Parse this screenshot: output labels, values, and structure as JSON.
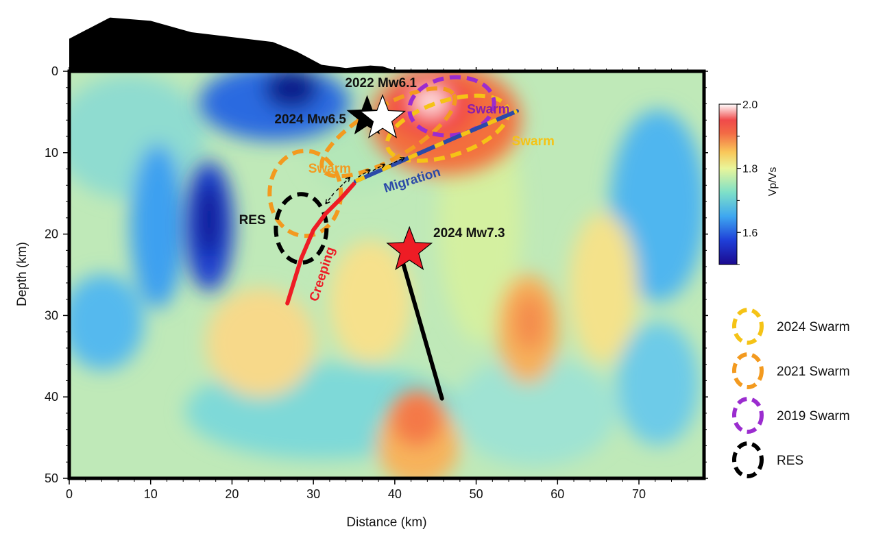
{
  "chart_data": {
    "type": "heatmap",
    "xlabel": "Distance (km)",
    "ylabel": "Depth (km)",
    "xlim": [
      0,
      78
    ],
    "ylim": [
      50,
      0
    ],
    "x_ticks": [
      0,
      10,
      20,
      30,
      40,
      50,
      60,
      70
    ],
    "y_ticks": [
      0,
      10,
      20,
      30,
      40,
      50
    ],
    "colorbar": {
      "label": "Vp/Vs",
      "range": [
        1.5,
        2.0
      ],
      "ticks": [
        1.6,
        1.8,
        2.0
      ],
      "tick_labels": [
        "1.6",
        "1.8",
        "2.0"
      ]
    },
    "anomalies": [
      {
        "x": 26.5,
        "depth": 2,
        "value": 1.52
      },
      {
        "x": 12,
        "depth": 5,
        "value": 1.62
      },
      {
        "x": 17.5,
        "depth": 19,
        "value": 1.54
      },
      {
        "x": 17.5,
        "depth": 22,
        "value": 1.55
      },
      {
        "x": 45,
        "depth": 4,
        "value": 1.99
      },
      {
        "x": 43,
        "depth": 9,
        "value": 1.9
      },
      {
        "x": 42,
        "depth": 43,
        "value": 1.88
      },
      {
        "x": 57,
        "depth": 32,
        "value": 1.85
      },
      {
        "x": 57.5,
        "depth": 28,
        "value": 1.84
      },
      {
        "x": 3,
        "depth": 31,
        "value": 1.68
      },
      {
        "x": 73,
        "depth": 15,
        "value": 1.65
      },
      {
        "x": 72,
        "depth": 38,
        "value": 1.67
      },
      {
        "x": 29,
        "depth": 33,
        "value": 1.82
      }
    ],
    "topography_km": [
      [
        0,
        -4
      ],
      [
        5,
        -6.6
      ],
      [
        10,
        -6.2
      ],
      [
        15,
        -4.8
      ],
      [
        20,
        -4.2
      ],
      [
        25,
        -3.6
      ],
      [
        28,
        -2.4
      ],
      [
        31,
        -0.8
      ],
      [
        34,
        -0.4
      ],
      [
        37,
        -0.7
      ],
      [
        38.5,
        -0.6
      ],
      [
        40,
        -0.1
      ]
    ],
    "events": [
      {
        "label": "2022 Mw6.1",
        "x": 38.5,
        "depth": 5.8,
        "star_color": "#ffffff"
      },
      {
        "label": "2024 Mw6.5",
        "x": 36.6,
        "depth": 5.6,
        "star_color": "#000000"
      },
      {
        "label": "2024 Mw7.3",
        "x": 41.8,
        "depth": 22.0,
        "star_color": "#ee1c25"
      }
    ],
    "faults": [
      {
        "label": "Creeping",
        "color": "#ee1c25",
        "points": [
          [
            26.8,
            28.5
          ],
          [
            28.5,
            23.0
          ],
          [
            30.0,
            19.5
          ],
          [
            31.5,
            17.5
          ],
          [
            33.5,
            15.5
          ],
          [
            35.0,
            13.8
          ]
        ]
      },
      {
        "label": "Migration",
        "color": "#2b4aa8",
        "points": [
          [
            35.2,
            13.5
          ],
          [
            45,
            9.2
          ],
          [
            55,
            4.9
          ]
        ]
      },
      {
        "label": "",
        "color": "#000000",
        "points": [
          [
            41.0,
            23.5
          ],
          [
            45.8,
            40.2
          ]
        ]
      }
    ],
    "swarm_labels": [
      {
        "label": "Swarm",
        "x": 51.5,
        "depth": 4.5,
        "color": "#8b1fa9"
      },
      {
        "label": "Swarm",
        "x": 57.0,
        "depth": 8.4,
        "color": "#f5c316"
      },
      {
        "label": "Swarm",
        "x": 32.0,
        "depth": 11.8,
        "color": "#f39a1f"
      }
    ],
    "res_label": {
      "label": "RES",
      "x": 22.5,
      "depth": 18.2
    },
    "legend": [
      {
        "label": "2024 Swarm",
        "color": "#f5c316"
      },
      {
        "label": "2021 Swarm",
        "color": "#f39a1f"
      },
      {
        "label": "2019 Swarm",
        "color": "#9b2ccf"
      },
      {
        "label": "RES",
        "color": "#000000"
      }
    ]
  }
}
